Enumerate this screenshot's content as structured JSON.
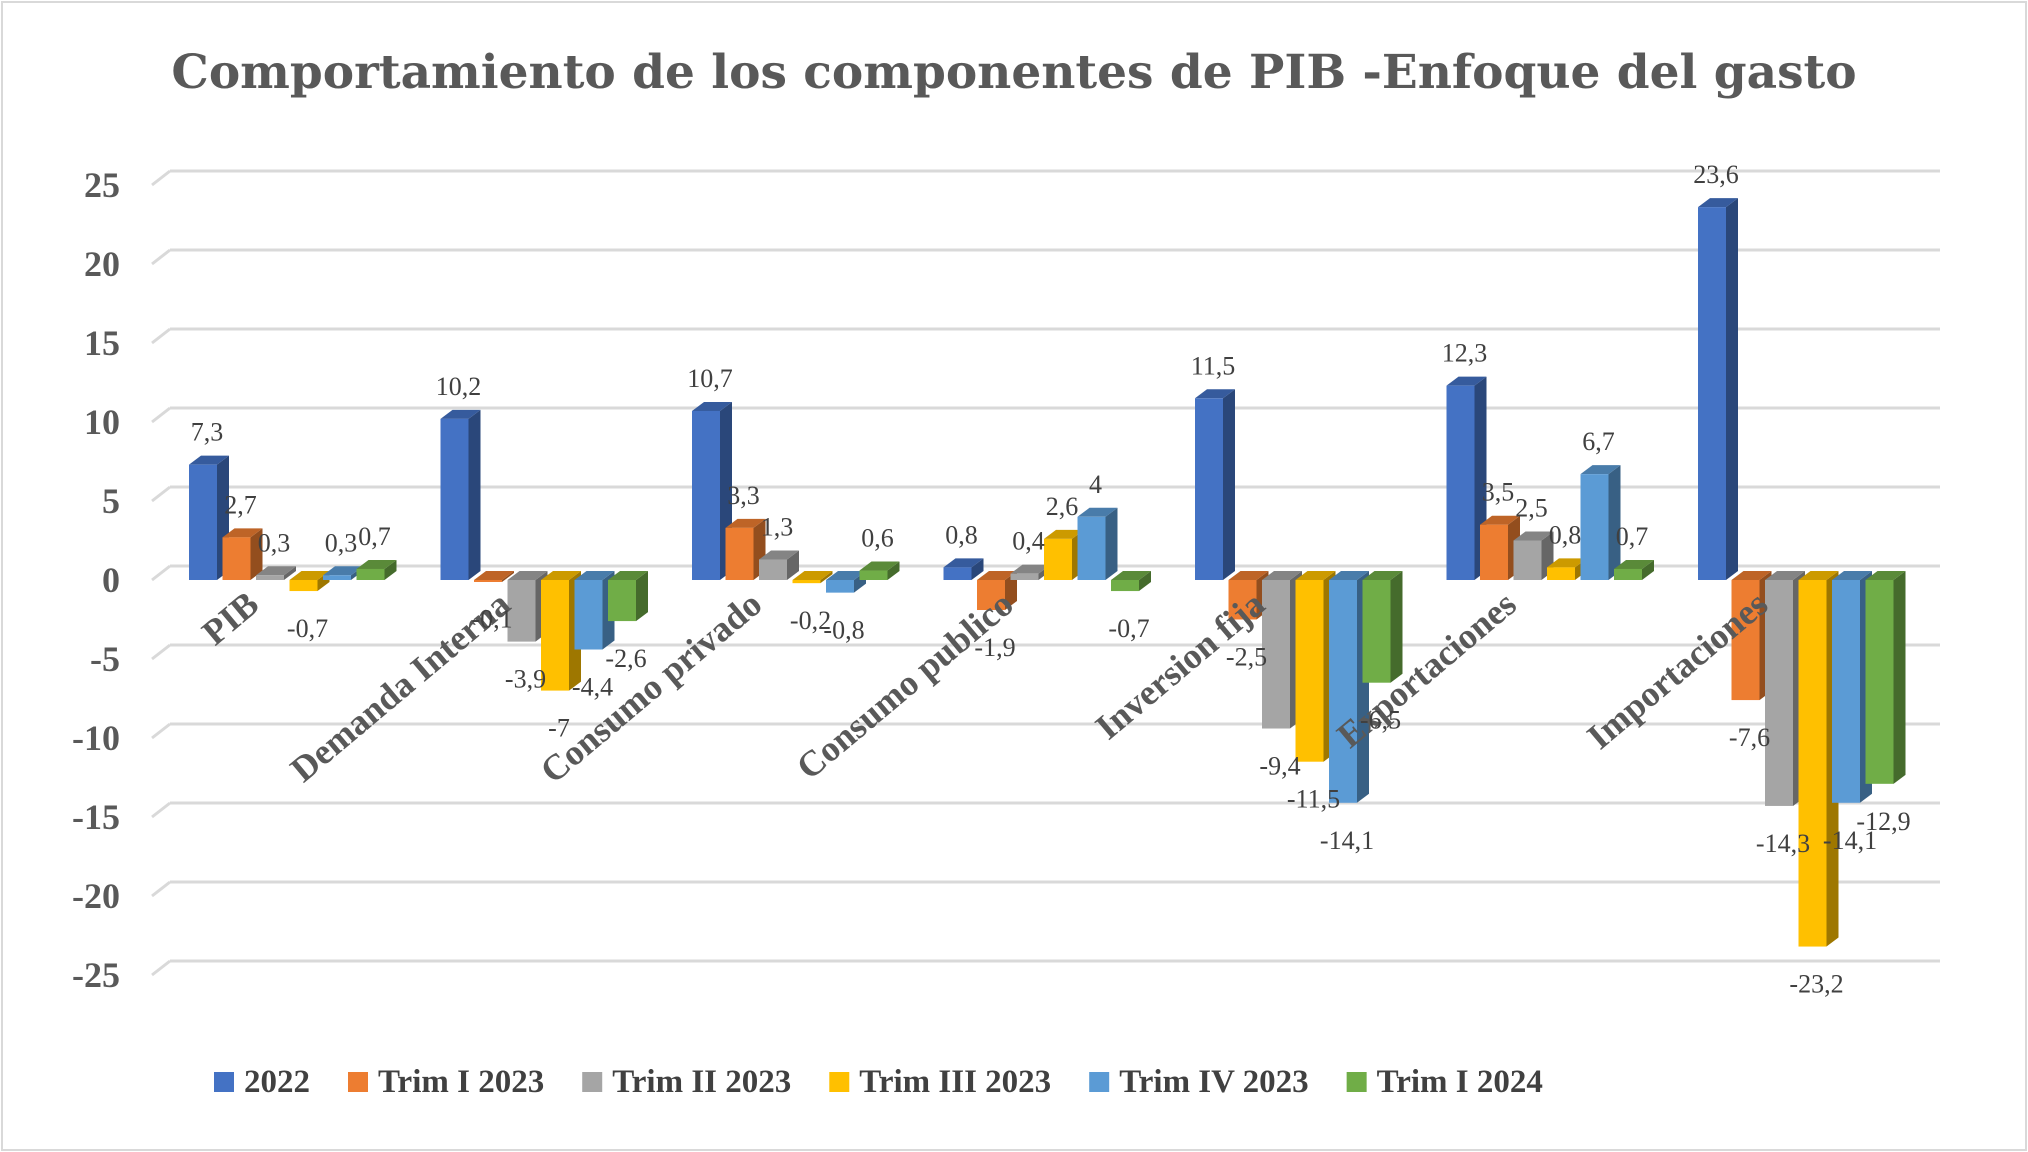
{
  "chart_data": {
    "type": "bar",
    "title": "Comportamiento de los componentes de PIB -Enfoque del gasto",
    "xlabel": "",
    "ylabel": "",
    "ylim": [
      -25,
      25
    ],
    "yticks": [
      "25",
      "20",
      "15",
      "10",
      "5",
      "0",
      "-5",
      "-10",
      "-15",
      "-20",
      "-25"
    ],
    "grid": true,
    "legend_position": "bottom",
    "categories": [
      "PIB",
      "Demanda Interna",
      "Consumo privado",
      "Consumo publico",
      "Inversion fija",
      "Exportaciones",
      "Importaciones"
    ],
    "series": [
      {
        "name": "2022",
        "color": "#4472C4",
        "values": [
          7.3,
          10.2,
          10.7,
          0.8,
          11.5,
          12.3,
          23.6
        ],
        "labels": [
          "7,3",
          "10,2",
          "10,7",
          "0,8",
          "11,5",
          "12,3",
          "23,6"
        ]
      },
      {
        "name": "Trim I 2023",
        "color": "#ED7D31",
        "values": [
          2.7,
          -0.1,
          3.3,
          -1.9,
          -2.5,
          3.5,
          -7.6
        ],
        "labels": [
          "2,7",
          "-0,1",
          "3,3",
          "-1,9",
          "-2,5",
          "3,5",
          "-7,6"
        ]
      },
      {
        "name": "Trim II 2023",
        "color": "#A5A5A5",
        "values": [
          0.3,
          -3.9,
          1.3,
          0.4,
          -9.4,
          2.5,
          -14.3
        ],
        "labels": [
          "0,3",
          "-3,9",
          "1,3",
          "0,4",
          "-9,4",
          "2,5",
          "-14,3"
        ]
      },
      {
        "name": "Trim III 2023",
        "color": "#FFC000",
        "values": [
          -0.7,
          -7,
          -0.2,
          2.6,
          -11.5,
          0.8,
          -23.2
        ],
        "labels": [
          "-0,7",
          "-7",
          "-0,2",
          "2,6",
          "-11,5",
          "0,8",
          "-23,2"
        ]
      },
      {
        "name": "Trim IV 2023",
        "color": "#5B9BD5",
        "values": [
          0.3,
          -4.4,
          -0.8,
          4,
          -14.1,
          6.7,
          -14.1
        ],
        "labels": [
          "0,3",
          "-4,4",
          "-0,8",
          "4",
          "-14,1",
          "6,7",
          "-14,1"
        ]
      },
      {
        "name": "Trim I 2024",
        "color": "#70AD47",
        "values": [
          0.7,
          -2.6,
          0.6,
          -0.7,
          -6.5,
          0.7,
          -12.9
        ],
        "labels": [
          "0,7",
          "-2,6",
          "0,6",
          "-0,7",
          "-6,5",
          "0,7",
          "-12,9"
        ]
      }
    ]
  }
}
